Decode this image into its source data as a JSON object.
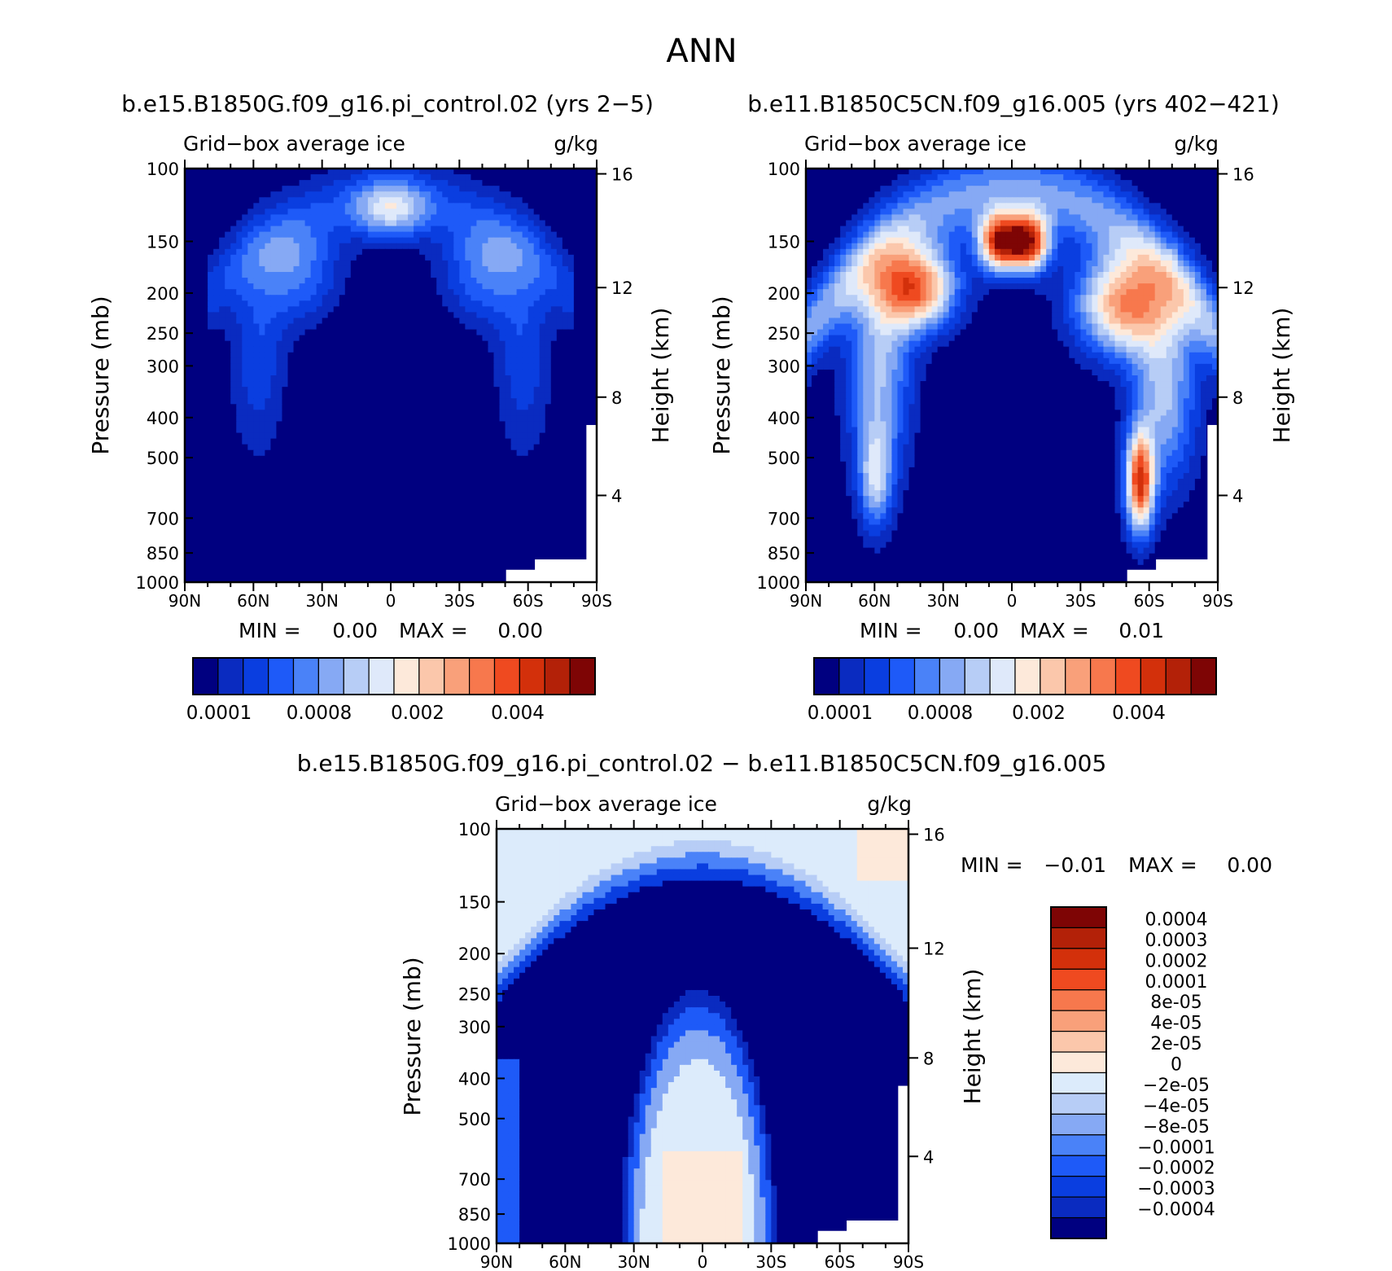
{
  "figure_title": "ANN",
  "colors": {
    "seq": [
      "#000080",
      "#0a2bc0",
      "#0a3ee0",
      "#1e5af8",
      "#4a82f8",
      "#86a9f4",
      "#b7cdf6",
      "#dfe9fa",
      "#fde9da",
      "#fbc7ab",
      "#f9a07a",
      "#f7784d",
      "#ef4a20",
      "#d3300b",
      "#b32108",
      "#7e0505"
    ],
    "div": [
      "#000080",
      "#0a2bc0",
      "#0a3ee0",
      "#1e5af8",
      "#4a82f8",
      "#86a9f4",
      "#b7cdf6",
      "#dcebfb",
      "#fde9da",
      "#fbc7ab",
      "#f9a07a",
      "#f7784d",
      "#ef4a20",
      "#d3300b",
      "#b32108",
      "#7e0505"
    ]
  },
  "chart_data": [
    {
      "type": "heatmap",
      "subtitle": "b.e15.B1850G.f09_g16.pi_control.02 (yrs 2−5)",
      "left_label": "Grid−box average ice",
      "right_label": "g/kg",
      "xlabel": "",
      "ylabel": "Pressure (mb)",
      "ylabel_right": "Height (km)",
      "x_ticks": [
        "90N",
        "60N",
        "30N",
        "0",
        "30S",
        "60S",
        "90S"
      ],
      "y_ticks": [
        "100",
        "150",
        "200",
        "250",
        "300",
        "400",
        "500",
        "700",
        "850",
        "1000"
      ],
      "height_ticks": [
        "16",
        "12",
        "8",
        "4"
      ],
      "min_label": "MIN =",
      "min_value": "0.00",
      "max_label": "MAX =",
      "max_value": "0.00",
      "colorbar_labels": [
        "0.0001",
        "0.0008",
        "0.002",
        "0.004"
      ],
      "field_peak": 0.55
    },
    {
      "type": "heatmap",
      "subtitle": "b.e11.B1850C5CN.f09_g16.005 (yrs 402−421)",
      "left_label": "Grid−box average ice",
      "right_label": "g/kg",
      "xlabel": "",
      "ylabel": "Pressure (mb)",
      "ylabel_right": "Height (km)",
      "x_ticks": [
        "90N",
        "60N",
        "30N",
        "0",
        "30S",
        "60S",
        "90S"
      ],
      "y_ticks": [
        "100",
        "150",
        "200",
        "250",
        "300",
        "400",
        "500",
        "700",
        "850",
        "1000"
      ],
      "height_ticks": [
        "16",
        "12",
        "8",
        "4"
      ],
      "min_label": "MIN =",
      "min_value": "0.00",
      "max_label": "MAX =",
      "max_value": "0.01",
      "colorbar_labels": [
        "0.0001",
        "0.0008",
        "0.002",
        "0.004"
      ],
      "field_peak": 1.0
    },
    {
      "type": "heatmap",
      "subtitle": "b.e15.B1850G.f09_g16.pi_control.02 − b.e11.B1850C5CN.f09_g16.005",
      "left_label": "Grid−box average ice",
      "right_label": "g/kg",
      "xlabel": "",
      "ylabel": "Pressure (mb)",
      "ylabel_right": "Height (km)",
      "x_ticks": [
        "90N",
        "60N",
        "30N",
        "0",
        "30S",
        "60S",
        "90S"
      ],
      "y_ticks": [
        "100",
        "150",
        "200",
        "250",
        "300",
        "400",
        "500",
        "700",
        "850",
        "1000"
      ],
      "height_ticks": [
        "16",
        "12",
        "8",
        "4"
      ],
      "min_label": "MIN =",
      "min_value": "−0.01",
      "max_label": "MAX =",
      "max_value": "0.00",
      "colorbar_labels": [
        "0.0004",
        "0.0003",
        "0.0002",
        "0.0001",
        "8e-05",
        "4e-05",
        "2e-05",
        "0",
        "−2e-05",
        "−4e-05",
        "−8e-05",
        "−0.0001",
        "−0.0002",
        "−0.0003",
        "−0.0004"
      ]
    }
  ]
}
